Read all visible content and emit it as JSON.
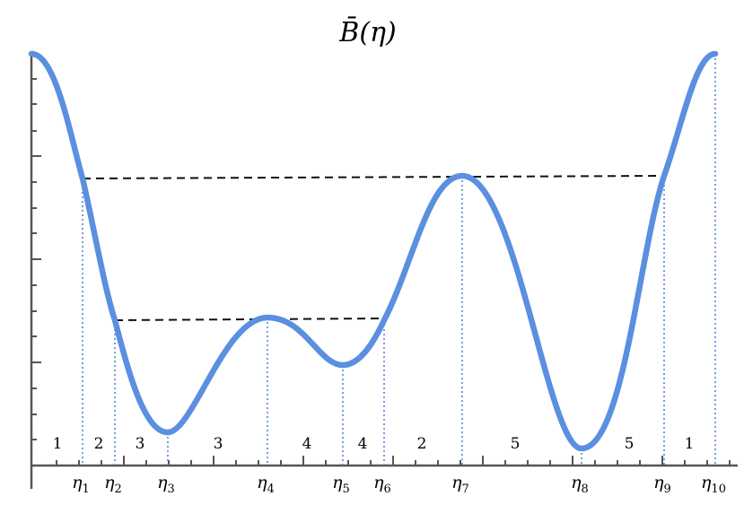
{
  "title": "B̄(η)",
  "colors": {
    "curve": "#5b8fdf",
    "axis": "#555555",
    "guide": "#4a7fd6",
    "dashed": "#111111"
  },
  "eta_labels": [
    {
      "base": "η",
      "sub": "1"
    },
    {
      "base": "η",
      "sub": "2"
    },
    {
      "base": "η",
      "sub": "3"
    },
    {
      "base": "η",
      "sub": "4"
    },
    {
      "base": "η",
      "sub": "5"
    },
    {
      "base": "η",
      "sub": "6"
    },
    {
      "base": "η",
      "sub": "7"
    },
    {
      "base": "η",
      "sub": "8"
    },
    {
      "base": "η",
      "sub": "9"
    },
    {
      "base": "η",
      "sub": "10"
    }
  ],
  "region_labels": [
    "1",
    "2",
    "3",
    "3",
    "4",
    "4",
    "2",
    "5",
    "5",
    "1"
  ]
}
